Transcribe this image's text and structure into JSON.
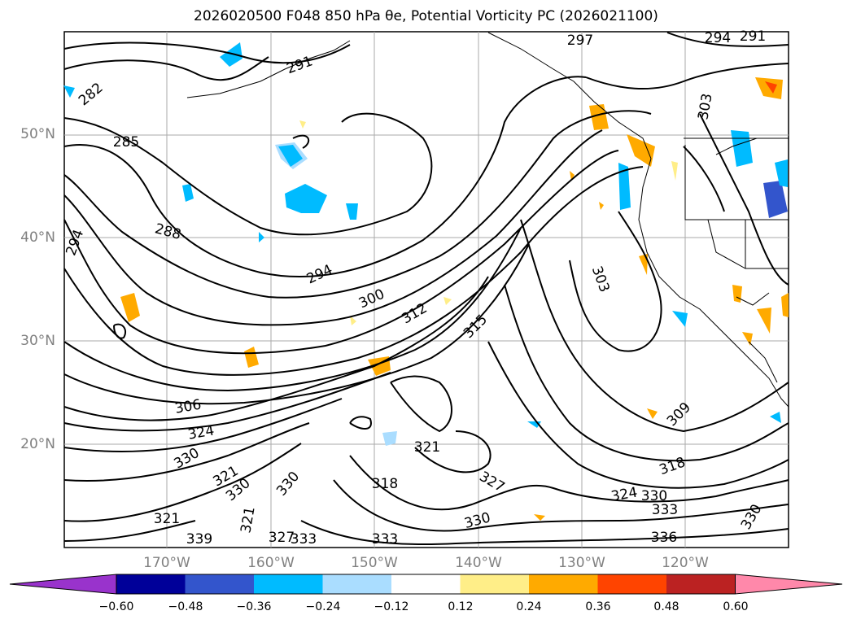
{
  "title": "2026020500 F048 850 hPa θe, Potential Vorticity PC (2026021100)",
  "latitudes": [
    "50°N",
    "40°N",
    "30°N",
    "20°N"
  ],
  "longitudes": [
    "170°W",
    "160°W",
    "150°W",
    "140°W",
    "130°W",
    "120°W"
  ],
  "contour_labels": [
    {
      "text": "282"
    },
    {
      "text": "285"
    },
    {
      "text": "288"
    },
    {
      "text": "291"
    },
    {
      "text": "294"
    },
    {
      "text": "294"
    },
    {
      "text": "294"
    },
    {
      "text": "291"
    },
    {
      "text": "297"
    },
    {
      "text": "303"
    },
    {
      "text": "303"
    },
    {
      "text": "300"
    },
    {
      "text": "312"
    },
    {
      "text": "315"
    },
    {
      "text": "306"
    },
    {
      "text": "324"
    },
    {
      "text": "330"
    },
    {
      "text": "321"
    },
    {
      "text": "330"
    },
    {
      "text": "321"
    },
    {
      "text": "330"
    },
    {
      "text": "321"
    },
    {
      "text": "318"
    },
    {
      "text": "327"
    },
    {
      "text": "330"
    },
    {
      "text": "333"
    },
    {
      "text": "309"
    },
    {
      "text": "318"
    },
    {
      "text": "324"
    },
    {
      "text": "330"
    },
    {
      "text": "333"
    },
    {
      "text": "336"
    },
    {
      "text": "330"
    },
    {
      "text": "339"
    },
    {
      "text": "333"
    },
    {
      "text": "327"
    },
    {
      "text": "321"
    }
  ],
  "colorbar": {
    "labels": [
      "−0.60",
      "−0.48",
      "−0.36",
      "−0.24",
      "−0.12",
      "0.12",
      "0.24",
      "0.36",
      "0.48",
      "0.60"
    ],
    "colors": [
      "#9933cc",
      "#000099",
      "#3355cc",
      "#00bbff",
      "#aaddff",
      "#ffffff",
      "#ffee88",
      "#ffaa00",
      "#ff4400",
      "#bb2222",
      "#ff88aa"
    ]
  }
}
